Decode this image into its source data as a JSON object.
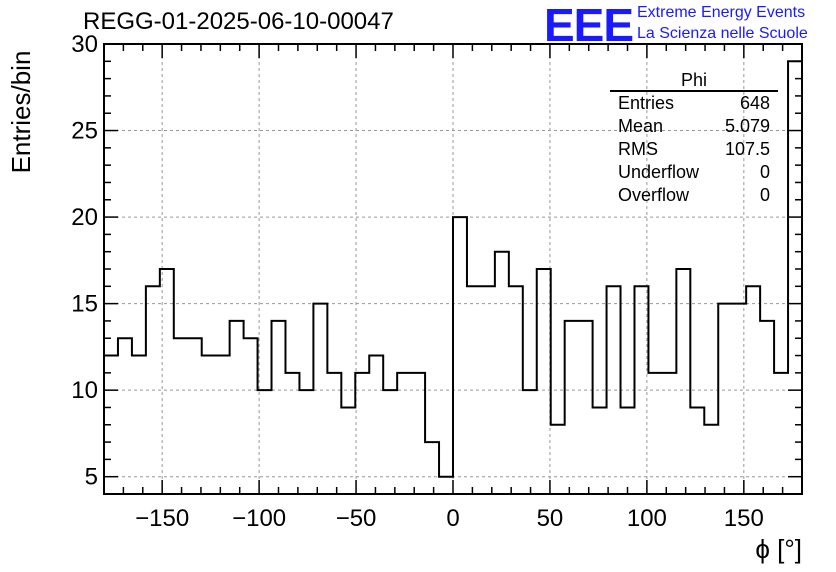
{
  "title": "REGG-01-2025-06-10-00047",
  "brand": {
    "logo": "EEE",
    "line1": "Extreme Energy Events",
    "line2": "La Scienza nelle Scuole",
    "color": "#1a1aff"
  },
  "stats": {
    "name": "Phi",
    "rows": [
      {
        "label": "Entries",
        "value": "648"
      },
      {
        "label": "Mean",
        "value": "5.079"
      },
      {
        "label": "RMS",
        "value": "107.5"
      },
      {
        "label": "Underflow",
        "value": "0"
      },
      {
        "label": "Overflow",
        "value": "0"
      }
    ]
  },
  "chart_data": {
    "type": "histogram",
    "title": "REGG-01-2025-06-10-00047",
    "xlabel": "ϕ [°]",
    "ylabel": "Entries/bin",
    "xlim": [
      -180,
      180
    ],
    "ylim": [
      4,
      30
    ],
    "bin_width": 7.2,
    "grid": true,
    "xticks": [
      -150,
      -100,
      -50,
      0,
      50,
      100,
      150
    ],
    "xtick_labels": [
      "−150",
      "−100",
      "−50",
      "0",
      "50",
      "100",
      "150"
    ],
    "yticks": [
      5,
      10,
      15,
      20,
      25,
      30
    ],
    "values": [
      12,
      13,
      12,
      16,
      17,
      13,
      13,
      12,
      12,
      14,
      13,
      10,
      14,
      11,
      10,
      15,
      11,
      9,
      11,
      12,
      10,
      11,
      11,
      7,
      5,
      20,
      16,
      16,
      18,
      16,
      10,
      17,
      8,
      14,
      14,
      9,
      16,
      9,
      16,
      11,
      11,
      17,
      9,
      8,
      15,
      15,
      16,
      14,
      11,
      29
    ]
  }
}
